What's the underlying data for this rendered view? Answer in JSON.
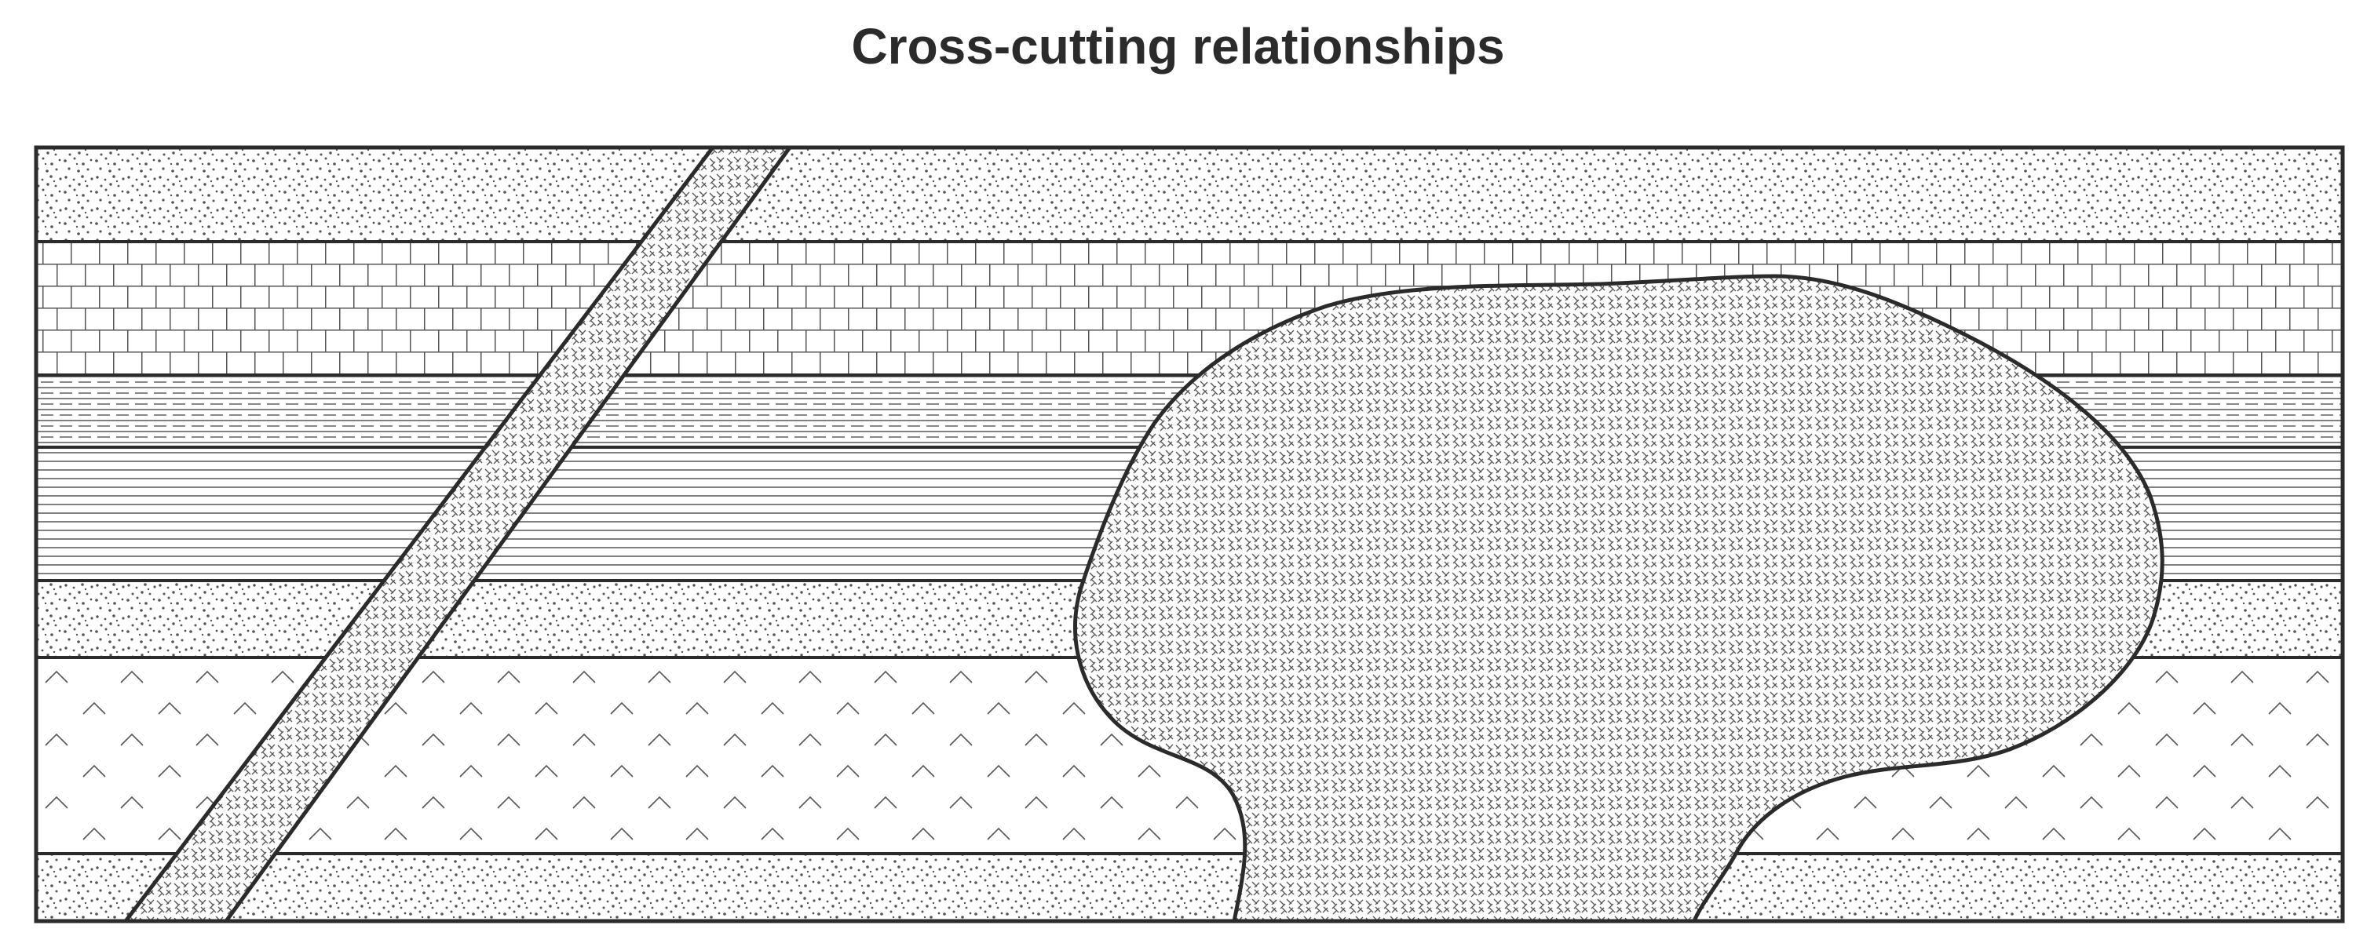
{
  "title": "Cross-cutting relationships",
  "colors": {
    "ink": "#2b2b2b",
    "background": "#ffffff",
    "pattern_ink": "#555555"
  },
  "layers": [
    {
      "name": "layer-sandstone-top",
      "pattern": "sandstone"
    },
    {
      "name": "layer-limestone",
      "pattern": "limestone"
    },
    {
      "name": "layer-siltstone",
      "pattern": "siltstone"
    },
    {
      "name": "layer-shale",
      "pattern": "shale"
    },
    {
      "name": "layer-sandstone-middle",
      "pattern": "sandstone"
    },
    {
      "name": "layer-igneous-chevron",
      "pattern": "chevron"
    },
    {
      "name": "layer-sandstone-bottom",
      "pattern": "sandstone"
    }
  ],
  "intrusions": [
    {
      "name": "dike",
      "pattern": "crosshatch"
    },
    {
      "name": "batholith",
      "pattern": "crosshatch"
    }
  ]
}
